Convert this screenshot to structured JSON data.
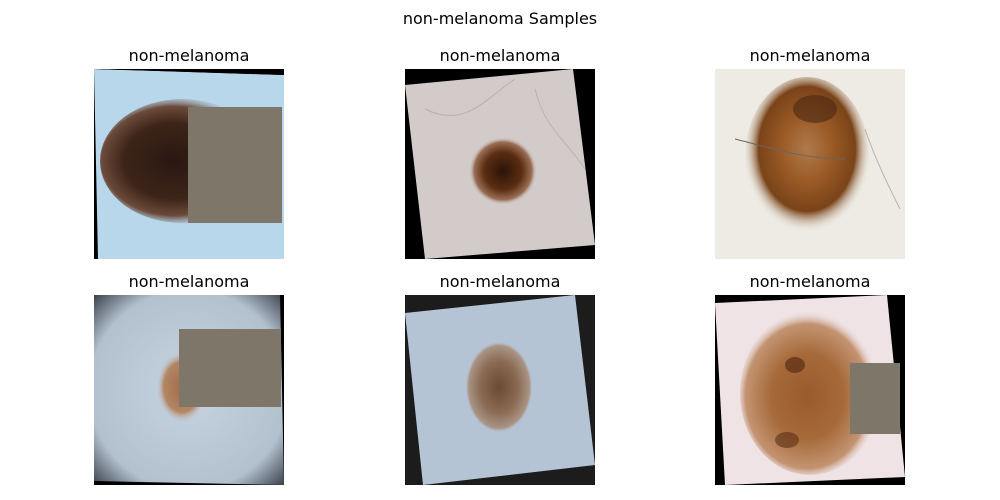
{
  "figure": {
    "title": "non-melanoma Samples"
  },
  "samples": [
    {
      "label": "non-melanoma"
    },
    {
      "label": "non-melanoma"
    },
    {
      "label": "non-melanoma"
    },
    {
      "label": "non-melanoma"
    },
    {
      "label": "non-melanoma"
    },
    {
      "label": "non-melanoma"
    }
  ],
  "colors": {
    "occlusion_patch": "#7e7669",
    "background": "#ffffff",
    "pad": "#000000"
  }
}
